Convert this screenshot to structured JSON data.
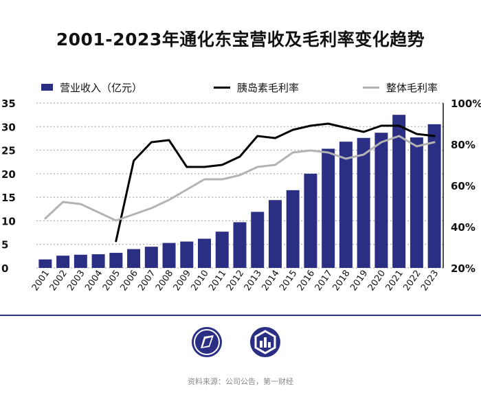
{
  "chart_data": {
    "type": "bar",
    "title": "2001-2023年通化东宝营收及毛利率变化趋势",
    "categories": [
      "2001",
      "2002",
      "2003",
      "2004",
      "2005",
      "2006",
      "2007",
      "2008",
      "2009",
      "2010",
      "2011",
      "2012",
      "2013",
      "2014",
      "2015",
      "2016",
      "2017",
      "2018",
      "2019",
      "2020",
      "2021",
      "2022",
      "2023"
    ],
    "y_left": {
      "lim": [
        0,
        35
      ],
      "ticks": [
        "0",
        "5",
        "10",
        "15",
        "20",
        "25",
        "30",
        "35"
      ]
    },
    "y_right": {
      "lim": [
        20,
        100
      ],
      "ticks": [
        "20%",
        "40%",
        "60%",
        "80%",
        "100%"
      ]
    },
    "series": [
      {
        "name": "营业收入（亿元）",
        "type": "bar",
        "axis": "left",
        "color": "#2b2f84",
        "values": [
          1.8,
          2.6,
          2.8,
          2.9,
          3.2,
          4.0,
          4.5,
          5.3,
          5.6,
          6.2,
          7.7,
          9.7,
          11.9,
          14.4,
          16.5,
          20.0,
          25.3,
          26.8,
          27.6,
          28.7,
          32.5,
          27.7,
          30.5
        ]
      },
      {
        "name": "胰岛素毛利率",
        "type": "line",
        "axis": "right",
        "color": "#000000",
        "values": [
          null,
          null,
          null,
          null,
          33,
          72,
          81,
          82,
          69,
          69,
          70,
          74,
          84,
          83,
          87,
          89,
          90,
          88,
          86,
          89,
          89,
          85,
          84
        ]
      },
      {
        "name": "整体毛利率",
        "type": "line",
        "axis": "right",
        "color": "#b3b3b3",
        "values": [
          44,
          52,
          51,
          47,
          43,
          46,
          49,
          53,
          58,
          63,
          63,
          65,
          69,
          70,
          76,
          77,
          76,
          73,
          75,
          81,
          84,
          79,
          81
        ]
      }
    ],
    "grid": true,
    "legend": "top"
  },
  "legend": {
    "revenue": "营业收入（亿元）",
    "insulin": "胰岛素毛利率",
    "overall": "整体毛利率"
  },
  "source": "资料来源：公司公告，第一财经",
  "colors": {
    "bar": "#2b2f84",
    "insulin_line": "#000000",
    "overall_line": "#b3b3b3",
    "grid": "#9a9a9a"
  },
  "icons": [
    "publication-logo-icon",
    "yicai-logo-icon"
  ]
}
